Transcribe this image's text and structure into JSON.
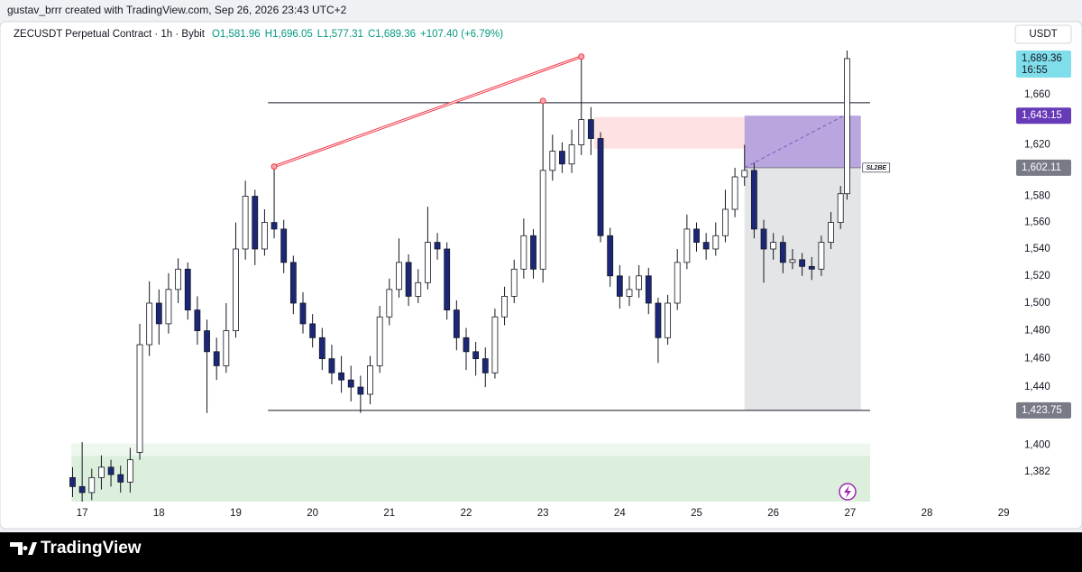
{
  "header": {
    "attribution": "gustav_brrr created with TradingView.com, Sep 26, 2026 23:43 UTC+2"
  },
  "footer": {
    "brand": "TradingView"
  },
  "chart_data": {
    "type": "candlestick",
    "title": "ZECUSDT Perpetual Contract · 1h · Bybit",
    "ohlc_legend": [
      "O1,581.96",
      "H1,696.05",
      "L1,577.31",
      "C1,689.36",
      "+107.40 (+6.79%)"
    ],
    "currency": "USDT",
    "log_scale": true,
    "grid": false,
    "up_color": "#ffffff",
    "down_color": "#1c2877",
    "x": [
      16.875,
      17,
      17.125,
      17.25,
      17.375,
      17.5,
      17.625,
      17.75,
      17.875,
      18,
      18.125,
      18.25,
      18.375,
      18.5,
      18.625,
      18.75,
      18.875,
      19,
      19.125,
      19.25,
      19.375,
      19.5,
      19.625,
      19.75,
      19.875,
      20,
      20.125,
      20.25,
      20.375,
      20.5,
      20.625,
      20.75,
      20.875,
      21,
      21.125,
      21.25,
      21.375,
      21.5,
      21.625,
      21.75,
      21.875,
      22,
      22.125,
      22.25,
      22.375,
      22.5,
      22.625,
      22.75,
      22.875,
      23,
      23.125,
      23.25,
      23.375,
      23.5,
      23.625,
      23.75,
      23.875,
      24,
      24.125,
      24.25,
      24.375,
      24.5,
      24.625,
      24.75,
      24.875,
      25,
      25.125,
      25.25,
      25.375,
      25.5,
      25.625,
      25.75,
      25.875,
      26,
      26.125,
      26.25,
      26.375,
      26.5,
      26.625,
      26.75,
      26.875,
      26.96
    ],
    "open": [
      1378,
      1372,
      1368,
      1378,
      1385,
      1380,
      1375,
      1395,
      1470,
      1500,
      1485,
      1510,
      1525,
      1495,
      1480,
      1465,
      1455,
      1480,
      1540,
      1580,
      1540,
      1560,
      1555,
      1530,
      1500,
      1485,
      1475,
      1460,
      1450,
      1445,
      1440,
      1435,
      1455,
      1490,
      1510,
      1530,
      1505,
      1515,
      1545,
      1540,
      1495,
      1475,
      1465,
      1460,
      1450,
      1490,
      1505,
      1525,
      1550,
      1525,
      1600,
      1615,
      1605,
      1620,
      1640,
      1625,
      1550,
      1520,
      1505,
      1510,
      1520,
      1500,
      1475,
      1500,
      1530,
      1555,
      1545,
      1540,
      1550,
      1570,
      1595,
      1600,
      1555,
      1540,
      1545,
      1530,
      1532,
      1527,
      1525,
      1545,
      1560,
      1581.96
    ],
    "high": [
      1385,
      1402,
      1384,
      1393,
      1390,
      1386,
      1398,
      1485,
      1516,
      1510,
      1522,
      1533,
      1530,
      1505,
      1488,
      1475,
      1500,
      1560,
      1592,
      1585,
      1570,
      1603,
      1562,
      1535,
      1508,
      1492,
      1482,
      1470,
      1462,
      1455,
      1448,
      1462,
      1498,
      1518,
      1548,
      1536,
      1525,
      1572,
      1552,
      1545,
      1502,
      1482,
      1472,
      1468,
      1496,
      1512,
      1532,
      1563,
      1555,
      1655,
      1628,
      1622,
      1632,
      1691,
      1650,
      1630,
      1556,
      1528,
      1520,
      1528,
      1526,
      1504,
      1506,
      1540,
      1566,
      1560,
      1552,
      1560,
      1585,
      1602,
      1620,
      1606,
      1562,
      1552,
      1550,
      1540,
      1537,
      1534,
      1550,
      1568,
      1588,
      1696.05
    ],
    "low": [
      1365,
      1362,
      1363,
      1370,
      1372,
      1368,
      1368,
      1390,
      1462,
      1470,
      1478,
      1500,
      1488,
      1470,
      1422,
      1445,
      1450,
      1475,
      1532,
      1528,
      1535,
      1548,
      1522,
      1492,
      1478,
      1468,
      1452,
      1442,
      1436,
      1430,
      1422,
      1428,
      1450,
      1484,
      1504,
      1498,
      1500,
      1510,
      1532,
      1488,
      1466,
      1452,
      1448,
      1440,
      1446,
      1484,
      1500,
      1518,
      1518,
      1515,
      1592,
      1598,
      1598,
      1612,
      1612,
      1545,
      1512,
      1496,
      1498,
      1504,
      1492,
      1457,
      1470,
      1495,
      1525,
      1538,
      1532,
      1535,
      1545,
      1564,
      1588,
      1548,
      1515,
      1532,
      1522,
      1525,
      1520,
      1517,
      1520,
      1540,
      1555,
      1577.31
    ],
    "close": [
      1372,
      1368,
      1378,
      1385,
      1380,
      1375,
      1390,
      1470,
      1500,
      1485,
      1510,
      1525,
      1495,
      1480,
      1465,
      1455,
      1480,
      1540,
      1580,
      1540,
      1560,
      1555,
      1530,
      1500,
      1485,
      1475,
      1460,
      1450,
      1445,
      1440,
      1435,
      1455,
      1490,
      1510,
      1530,
      1505,
      1515,
      1545,
      1540,
      1495,
      1475,
      1465,
      1460,
      1450,
      1490,
      1505,
      1525,
      1550,
      1525,
      1600,
      1615,
      1605,
      1620,
      1640,
      1625,
      1550,
      1520,
      1505,
      1510,
      1520,
      1500,
      1475,
      1500,
      1530,
      1555,
      1545,
      1540,
      1550,
      1570,
      1595,
      1600,
      1555,
      1540,
      1545,
      1530,
      1532,
      1527,
      1525,
      1545,
      1560,
      1581.96,
      1689.36
    ],
    "xlim": [
      15.93,
      29.08
    ],
    "ylim": [
      1362,
      1699
    ],
    "xticks": [
      17,
      18,
      19,
      20,
      21,
      22,
      23,
      24,
      25,
      26,
      27,
      28,
      29
    ],
    "yticks": [
      {
        "value": 1382,
        "label": "1,382"
      },
      {
        "value": 1400,
        "label": "1,400"
      },
      {
        "value": 1440,
        "label": "1,440"
      },
      {
        "value": 1460,
        "label": "1,460"
      },
      {
        "value": 1480,
        "label": "1,480"
      },
      {
        "value": 1500,
        "label": "1,500"
      },
      {
        "value": 1520,
        "label": "1,520"
      },
      {
        "value": 1540,
        "label": "1,540"
      },
      {
        "value": 1560,
        "label": "1,560"
      },
      {
        "value": 1580,
        "label": "1,580"
      },
      {
        "value": 1620,
        "label": "1,620"
      },
      {
        "value": 1660,
        "label": "1,660"
      }
    ],
    "last_price": {
      "value": 1689.36,
      "label": "1,689.36"
    },
    "countdown": "16:55",
    "levels": {
      "x": [
        19.42,
        27.26
      ],
      "values": [
        1653.5,
        1423.75
      ]
    },
    "trendline": {
      "x": [
        19.5,
        23.0,
        23.5
      ],
      "y": [
        1603,
        1655,
        1691
      ]
    },
    "supply_zone": {
      "x": [
        23.67,
        25.625
      ],
      "y": [
        1617,
        1642
      ]
    },
    "demand_zone": {
      "x": [
        16.86,
        27.26
      ],
      "y": [
        1362,
        1401
      ],
      "inner_top": 1392.6
    },
    "position": {
      "x": [
        25.625,
        27.14
      ],
      "entry": {
        "value": 1602.11,
        "label": "1,602.11"
      },
      "target": {
        "value": 1643.15,
        "label": "1,643.15"
      },
      "stop": {
        "value": 1423.75,
        "label": "1,423.75"
      },
      "note": "SL2BE"
    },
    "projection": {
      "x": [
        25.625,
        26.92
      ],
      "y": [
        1602.11,
        1643.15
      ]
    }
  }
}
